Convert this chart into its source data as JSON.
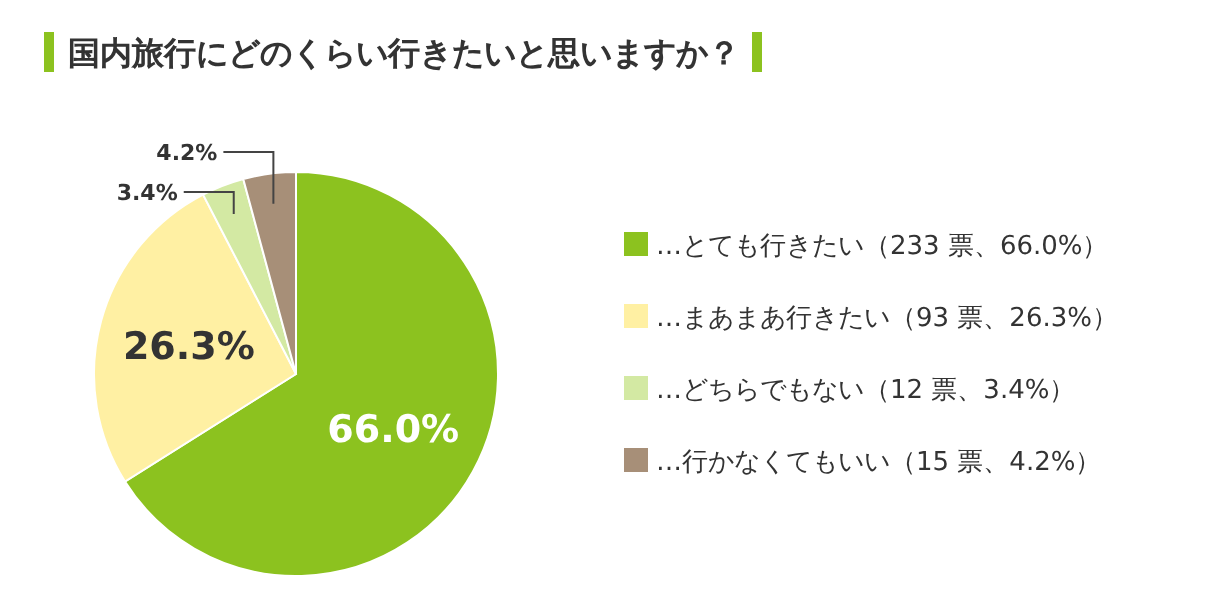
{
  "chart_data": {
    "type": "pie",
    "title": "国内旅行にどのくらい行きたいと思いますか？",
    "categories": [
      "…とても行きたい（233 票、66.0%）",
      "…まあまあ行きたい（93 票、26.3%）",
      "…どちらでもない（12 票、3.4%）",
      "…行かなくてもいい（15 票、4.2%）"
    ],
    "values": [
      66.0,
      26.3,
      3.4,
      4.2
    ],
    "colors": [
      "#8cc21f",
      "#fff0a3",
      "#d3e9a3",
      "#a78f78"
    ],
    "value_labels": [
      "66.0%",
      "26.3%",
      "3.4%",
      "4.2%"
    ],
    "legend": "right"
  }
}
